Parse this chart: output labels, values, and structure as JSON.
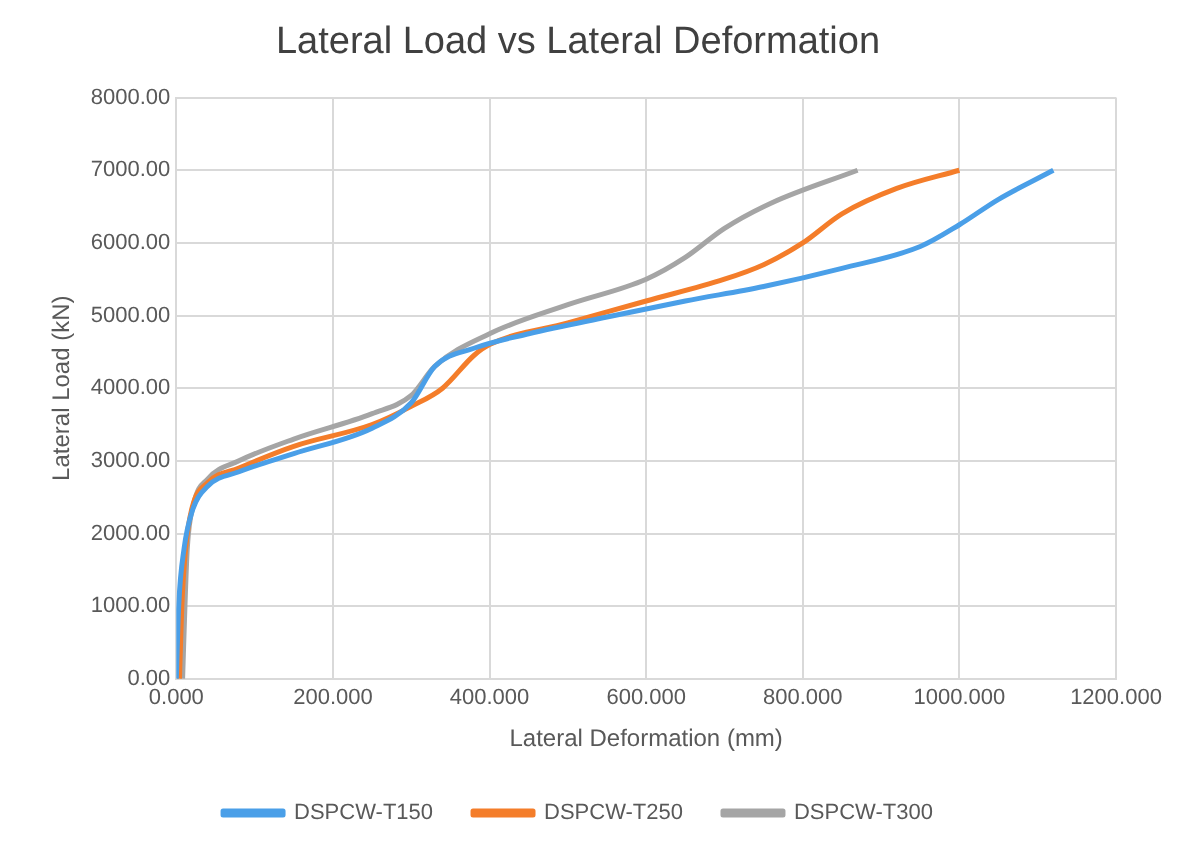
{
  "chart_data": {
    "type": "line",
    "title": "Lateral Load vs Lateral Deformation",
    "xlabel": "Lateral Deformation (mm)",
    "ylabel": "Lateral Load (kN)",
    "xlim": [
      0,
      1200
    ],
    "xticks": [
      {
        "value": 0,
        "label": "0.000"
      },
      {
        "value": 200,
        "label": "200.000"
      },
      {
        "value": 400,
        "label": "400.000"
      },
      {
        "value": 600,
        "label": "600.000"
      },
      {
        "value": 800,
        "label": "800.000"
      },
      {
        "value": 1000,
        "label": "1000.000"
      },
      {
        "value": 1200,
        "label": "1200.000"
      }
    ],
    "ylim": [
      0,
      8000
    ],
    "yticks": [
      {
        "value": 0,
        "label": "0.00"
      },
      {
        "value": 1000,
        "label": "1000.00"
      },
      {
        "value": 2000,
        "label": "2000.00"
      },
      {
        "value": 3000,
        "label": "3000.00"
      },
      {
        "value": 4000,
        "label": "4000.00"
      },
      {
        "value": 5000,
        "label": "5000.00"
      },
      {
        "value": 6000,
        "label": "6000.00"
      },
      {
        "value": 7000,
        "label": "7000.00"
      },
      {
        "value": 8000,
        "label": "8000.00"
      }
    ],
    "grid": true,
    "legend": "bottom",
    "marker": "none",
    "line_style": "solid",
    "series": [
      {
        "name": "DSPCW-T150",
        "color": "#4a9fe8",
        "x": [
          0,
          3,
          10,
          20,
          40,
          80,
          150,
          250,
          300,
          330,
          380,
          450,
          550,
          650,
          750,
          850,
          950,
          1000,
          1050,
          1120
        ],
        "values": [
          0,
          1000,
          1800,
          2300,
          2650,
          2850,
          3100,
          3450,
          3800,
          4300,
          4550,
          4750,
          4980,
          5200,
          5400,
          5650,
          5950,
          6250,
          6600,
          7000
        ]
      },
      {
        "name": "DSPCW-T250",
        "color": "#f47d2a",
        "x": [
          4,
          7,
          12,
          20,
          40,
          80,
          150,
          250,
          300,
          340,
          380,
          400,
          500,
          600,
          700,
          750,
          800,
          850,
          920,
          1000
        ],
        "values": [
          0,
          1000,
          1800,
          2350,
          2700,
          2900,
          3200,
          3500,
          3750,
          4000,
          4450,
          4600,
          4900,
          5200,
          5500,
          5700,
          6000,
          6400,
          6750,
          7000
        ]
      },
      {
        "name": "DSPCW-T300",
        "color": "#a5a5a5",
        "x": [
          8,
          11,
          14,
          22,
          40,
          80,
          150,
          250,
          300,
          330,
          400,
          500,
          600,
          650,
          700,
          760,
          870
        ],
        "values": [
          0,
          1000,
          1800,
          2400,
          2750,
          3000,
          3300,
          3650,
          3900,
          4300,
          4750,
          5150,
          5500,
          5800,
          6200,
          6550,
          7000
        ]
      }
    ]
  }
}
